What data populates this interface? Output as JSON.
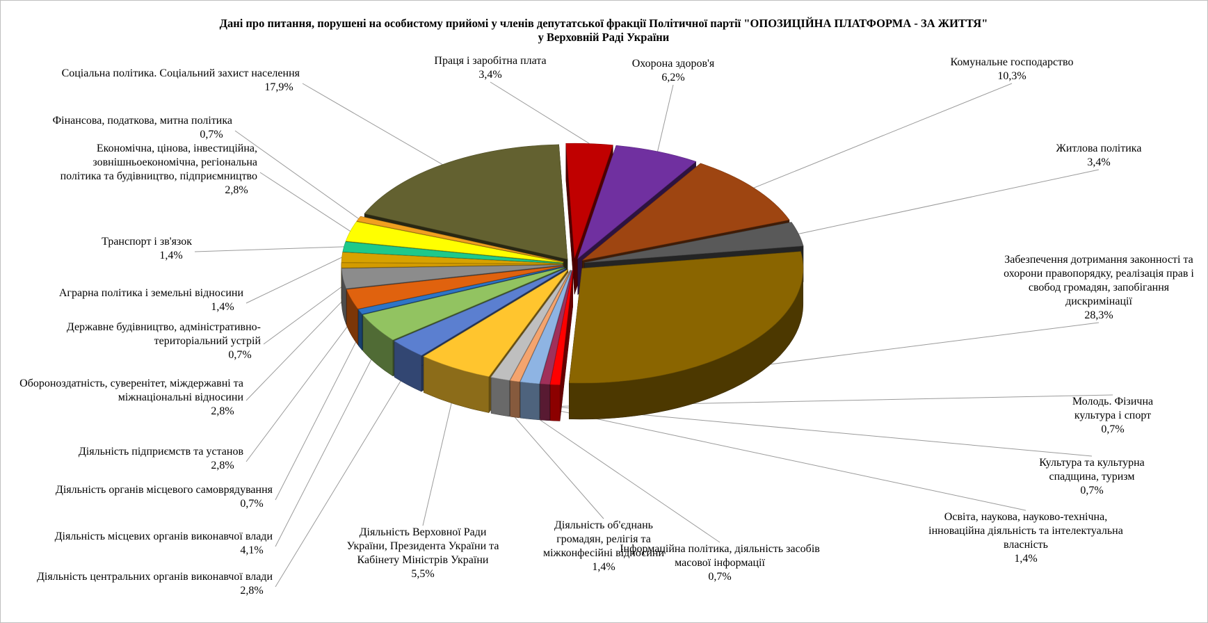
{
  "chart_data": {
    "type": "pie",
    "style": "3d-exploded",
    "title": "Дані про питання, порушені на особистому прийомі у членів депутатської фракції  Політичної партії \"ОПОЗИЦІЙНА  ПЛАТФОРМА - ЗА ЖИТТЯ\"",
    "subtitle": "у Верховній Раді України",
    "legend": "none",
    "value_unit": "%",
    "slices": [
      {
        "label_lines": [
          "Охорона здоров'я"
        ],
        "value": 6.2,
        "value_label": "6,2%",
        "color": "#7030a0"
      },
      {
        "label_lines": [
          "Комунальне господарство"
        ],
        "value": 10.3,
        "value_label": "10,3%",
        "color": "#9e4511"
      },
      {
        "label_lines": [
          "Житлова політика"
        ],
        "value": 3.4,
        "value_label": "3,4%",
        "color": "#595959"
      },
      {
        "label_lines": [
          "Забезпечення дотримання законності та",
          "охорони правопорядку, реалізація прав і",
          "свобод громадян, запобігання",
          "дискримінації"
        ],
        "value": 28.3,
        "value_label": "28,3%",
        "color": "#8a6500"
      },
      {
        "label_lines": [
          "Молодь. Фізична",
          "культура і спорт"
        ],
        "value": 0.7,
        "value_label": "0,7%",
        "color": "#ff0000"
      },
      {
        "label_lines": [
          "Культура та культурна",
          "спадщина, туризм"
        ],
        "value": 0.7,
        "value_label": "0,7%",
        "color": "#a0305a"
      },
      {
        "label_lines": [
          "Освіта, наукова, науково-технічна,",
          "інноваційна діяльність та інтелектуальна",
          "власність"
        ],
        "value": 1.4,
        "value_label": "1,4%",
        "color": "#8eb4e3"
      },
      {
        "label_lines": [
          "Інформаційна політика, діяльність засобів",
          "масової інформації"
        ],
        "value": 0.7,
        "value_label": "0,7%",
        "color": "#f4a46e"
      },
      {
        "label_lines": [
          "Діяльність об'єднань",
          "громадян, релігія та",
          "міжконфесійні відносини"
        ],
        "value": 1.4,
        "value_label": "1,4%",
        "color": "#bfbfbf"
      },
      {
        "label_lines": [
          "Діяльність Верховної Ради",
          "України, Президента України та",
          "Кабінету Міністрів  України"
        ],
        "value": 5.5,
        "value_label": "5,5%",
        "color": "#ffc52e"
      },
      {
        "label_lines": [
          "Діяльність центральних органів виконавчої влади"
        ],
        "value": 2.8,
        "value_label": "2,8%",
        "color": "#5b7fd0"
      },
      {
        "label_lines": [
          "Діяльність місцевих органів виконавчої влади"
        ],
        "value": 4.1,
        "value_label": "4,1%",
        "color": "#92c361"
      },
      {
        "label_lines": [
          "Діяльність органів місцевого самоврядування"
        ],
        "value": 0.7,
        "value_label": "0,7%",
        "color": "#2e75c6"
      },
      {
        "label_lines": [
          "Діяльність підприємств та установ"
        ],
        "value": 2.8,
        "value_label": "2,8%",
        "color": "#e0620e"
      },
      {
        "label_lines": [
          "Обороноздатність, суверенітет, міждержавні та",
          "міжнаціональні  відносини"
        ],
        "value": 2.8,
        "value_label": "2,8%",
        "color": "#8c8c8c"
      },
      {
        "label_lines": [
          "Державне будівництво, адміністративно-",
          "територіальний устрій"
        ],
        "value": 0.7,
        "value_label": "0,7%",
        "color": "#d39b00"
      },
      {
        "label_lines": [
          "Аграрна політика і земельні відносини"
        ],
        "value": 1.4,
        "value_label": "1,4%",
        "color": "#d7a200"
      },
      {
        "label_lines": [
          "Транспорт і зв'язок"
        ],
        "value": 1.4,
        "value_label": "1,4%",
        "color": "#1ec98b"
      },
      {
        "label_lines": [
          "Економічна, цінова, інвестиційна,",
          "зовнішньоекономічна, регіональна",
          "політика та будівництво, підприємництво"
        ],
        "value": 2.8,
        "value_label": "2,8%",
        "color": "#ffff00"
      },
      {
        "label_lines": [
          "Фінансова, податкова, митна політика"
        ],
        "value": 0.7,
        "value_label": "0,7%",
        "color": "#f0a020"
      },
      {
        "label_lines": [
          "Соціальна політика. Соціальний захист населення"
        ],
        "value": 17.9,
        "value_label": "17,9%",
        "color": "#636130"
      },
      {
        "label_lines": [
          "Праця і заробітна плата"
        ],
        "value": 3.4,
        "value_label": "3,4%",
        "color": "#c00000"
      }
    ]
  }
}
